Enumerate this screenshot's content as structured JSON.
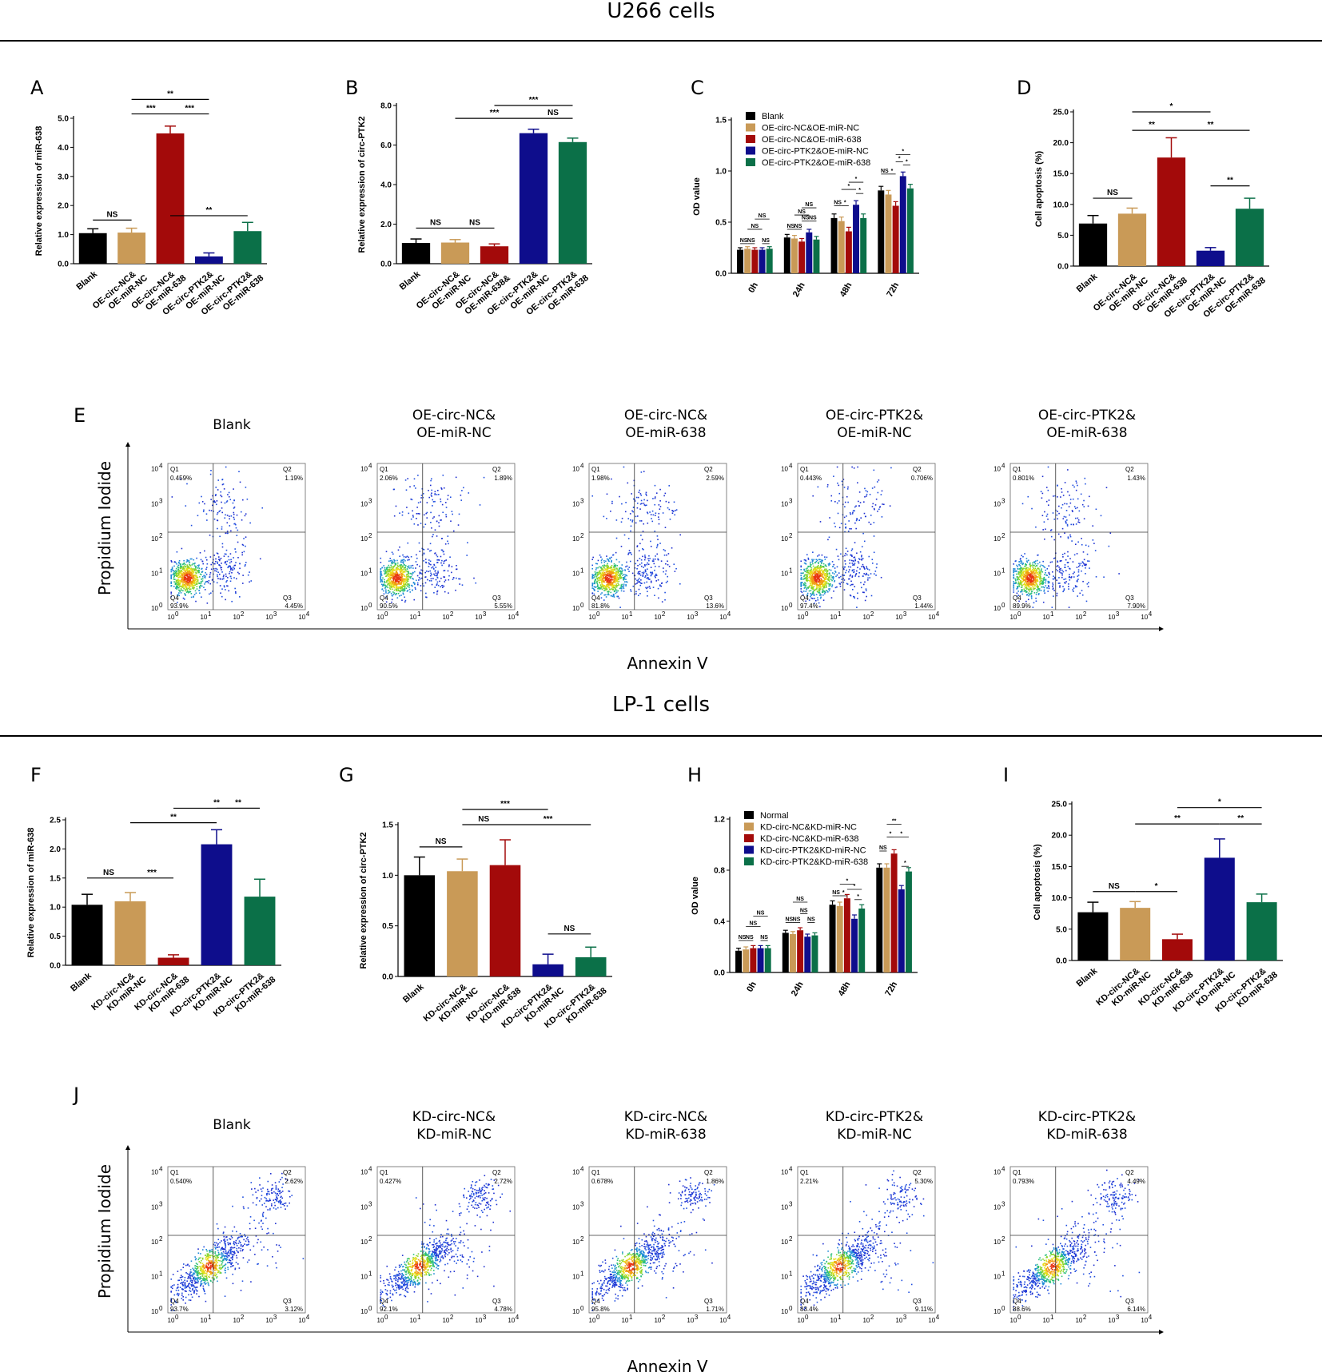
{
  "sections": [
    {
      "title": "U266 cells"
    },
    {
      "title": "LP-1 cells"
    }
  ],
  "colors": {
    "black": "#000000",
    "tan": "#C99A57",
    "red": "#A30A0A",
    "blue": "#0E0D8C",
    "green": "#0B7048"
  },
  "chart_data": [
    {
      "id": "A",
      "type": "bar",
      "letter": "A",
      "ylabel": "Relative expression of miR-638",
      "ylim": [
        0,
        5
      ],
      "yticks": [
        "0.0",
        "1.0",
        "2.0",
        "3.0",
        "4.0",
        "5.0"
      ],
      "ytick_values": [
        0,
        1,
        2,
        3,
        4,
        5
      ],
      "categories": [
        "Blank",
        "OE-circ-NC&\nOE-miR-NC",
        "OE-circ-NC&\nOE-miR-638",
        "OE-circ-PTK2&\nOE-miR-NC",
        "OE-circ-PTK2&\nOE-miR-638"
      ],
      "values": [
        1.05,
        1.07,
        4.48,
        0.25,
        1.12
      ],
      "errors": [
        0.15,
        0.15,
        0.25,
        0.12,
        0.3
      ],
      "significance": [
        {
          "from": 0,
          "to": 1,
          "label": "NS",
          "level": 1.5
        },
        {
          "from": 2,
          "to": 4,
          "label": "**",
          "level": 1.65
        },
        {
          "from": 1,
          "to": 2,
          "label": "***",
          "level": 5.15
        },
        {
          "from": 2,
          "to": 3,
          "label": "***",
          "level": 5.15
        },
        {
          "from": 1,
          "to": 3,
          "label": "**",
          "level": 5.65
        }
      ]
    },
    {
      "id": "B",
      "type": "bar",
      "letter": "B",
      "ylabel": "Relative expression of circ-PTK2",
      "ylim": [
        0,
        8
      ],
      "yticks": [
        "0.0",
        "2.0",
        "4.0",
        "6.0",
        "8.0"
      ],
      "ytick_values": [
        0,
        2,
        4,
        6,
        8
      ],
      "categories": [
        "Blank",
        "OE-circ-NC&\nOE-miR-NC",
        "OE-circ-NC&\nOE-miR-638&",
        "OE-circ-PTK2&\nOE-miR-NC",
        "OE-circ-PTK2&\nOE-miR-638"
      ],
      "values": [
        1.05,
        1.07,
        0.88,
        6.6,
        6.15
      ],
      "errors": [
        0.2,
        0.15,
        0.12,
        0.2,
        0.2
      ],
      "significance": [
        {
          "from": 0,
          "to": 1,
          "label": "NS",
          "level": 1.8
        },
        {
          "from": 1,
          "to": 2,
          "label": "NS",
          "level": 1.8
        },
        {
          "from": 1,
          "to": 3,
          "label": "***",
          "level": 7.35
        },
        {
          "from": 3,
          "to": 4,
          "label": "NS",
          "level": 7.35
        },
        {
          "from": 2,
          "to": 4,
          "label": "***",
          "level": 8.0
        }
      ]
    },
    {
      "id": "C",
      "type": "grouped-bar",
      "letter": "C",
      "ylabel": "OD value",
      "ylim": [
        0,
        1.5
      ],
      "yticks": [
        "0.0",
        "0.5",
        "1.0",
        "1.5"
      ],
      "ytick_values": [
        0,
        0.5,
        1,
        1.5
      ],
      "categories": [
        "0h",
        "24h",
        "48h",
        "72h"
      ],
      "series": [
        {
          "name": "Blank",
          "values": [
            0.23,
            0.35,
            0.54,
            0.81
          ]
        },
        {
          "name": "OE-circ-NC&OE-miR-NC",
          "values": [
            0.24,
            0.34,
            0.51,
            0.77
          ]
        },
        {
          "name": "OE-circ-NC&OE-miR-638",
          "values": [
            0.23,
            0.31,
            0.41,
            0.66
          ]
        },
        {
          "name": "OE-circ-PTK2&OE-miR-NC",
          "values": [
            0.23,
            0.4,
            0.67,
            0.95
          ]
        },
        {
          "name": "OE-circ-PTK2&OE-miR-638",
          "values": [
            0.24,
            0.33,
            0.54,
            0.83
          ]
        }
      ],
      "errors": [
        0.02,
        0.03,
        0.04,
        0.04
      ],
      "significance": [
        {
          "group": 0,
          "from": 0,
          "to": 1,
          "label": "NS",
          "level": 0.29
        },
        {
          "group": 0,
          "from": 1,
          "to": 2,
          "label": "NS",
          "level": 0.29
        },
        {
          "group": 0,
          "from": 3,
          "to": 4,
          "label": "NS",
          "level": 0.29
        },
        {
          "group": 0,
          "from": 1,
          "to": 3,
          "label": "NS",
          "level": 0.43
        },
        {
          "group": 0,
          "from": 2,
          "to": 4,
          "label": "NS",
          "level": 0.53
        },
        {
          "group": 1,
          "from": 0,
          "to": 1,
          "label": "NS",
          "level": 0.43
        },
        {
          "group": 1,
          "from": 1,
          "to": 2,
          "label": "NS",
          "level": 0.43
        },
        {
          "group": 1,
          "from": 2,
          "to": 3,
          "label": "NS",
          "level": 0.51
        },
        {
          "group": 1,
          "from": 3,
          "to": 4,
          "label": "NS",
          "level": 0.51
        },
        {
          "group": 1,
          "from": 1,
          "to": 3,
          "label": "NS",
          "level": 0.57
        },
        {
          "group": 1,
          "from": 2,
          "to": 4,
          "label": "NS",
          "level": 0.64
        },
        {
          "group": 2,
          "from": 0,
          "to": 1,
          "label": "NS",
          "level": 0.66
        },
        {
          "group": 2,
          "from": 1,
          "to": 2,
          "label": "*",
          "level": 0.66
        },
        {
          "group": 2,
          "from": 3,
          "to": 4,
          "label": "*",
          "level": 0.78
        },
        {
          "group": 2,
          "from": 1,
          "to": 3,
          "label": "*",
          "level": 0.82
        },
        {
          "group": 2,
          "from": 2,
          "to": 4,
          "label": "*",
          "level": 0.89
        },
        {
          "group": 3,
          "from": 0,
          "to": 1,
          "label": "NS",
          "level": 0.97
        },
        {
          "group": 3,
          "from": 1,
          "to": 2,
          "label": "*",
          "level": 0.97
        },
        {
          "group": 3,
          "from": 3,
          "to": 4,
          "label": "*",
          "level": 1.06
        },
        {
          "group": 3,
          "from": 2,
          "to": 3,
          "label": "*",
          "level": 1.09
        },
        {
          "group": 3,
          "from": 2,
          "to": 4,
          "label": "*",
          "level": 1.16
        }
      ]
    },
    {
      "id": "D",
      "type": "bar",
      "letter": "D",
      "ylabel": "Cell apoptosis (%)",
      "ylim": [
        0,
        25
      ],
      "yticks": [
        "0.0",
        "5.0",
        "10.0",
        "15.0",
        "20.0",
        "25.0"
      ],
      "ytick_values": [
        0,
        5,
        10,
        15,
        20,
        25
      ],
      "categories": [
        "Blank",
        "OE-circ-NC&\nOE-miR-NC",
        "OE-circ-NC&\nOE-miR-638",
        "OE-circ-PTK2&\nOE-miR-NC",
        "OE-circ-PTK2&\nOE-miR-638"
      ],
      "values": [
        6.9,
        8.5,
        17.6,
        2.5,
        9.3
      ],
      "errors": [
        1.3,
        0.9,
        3.2,
        0.5,
        1.7
      ],
      "significance": [
        {
          "from": 0,
          "to": 1,
          "label": "NS",
          "level": 11.0
        },
        {
          "from": 3,
          "to": 4,
          "label": "**",
          "level": 13.0
        },
        {
          "from": 1,
          "to": 2,
          "label": "**",
          "level": 22.0
        },
        {
          "from": 2,
          "to": 4,
          "label": "**",
          "level": 22.0
        },
        {
          "from": 1,
          "to": 3,
          "label": "*",
          "level": 25.0
        }
      ]
    },
    {
      "id": "F",
      "type": "bar",
      "letter": "F",
      "ylabel": "Relative expression of miR-638",
      "ylim": [
        0,
        2.5
      ],
      "yticks": [
        "0.0",
        "0.5",
        "1.0",
        "1.5",
        "2.0",
        "2.5"
      ],
      "ytick_values": [
        0,
        0.5,
        1,
        1.5,
        2,
        2.5
      ],
      "categories": [
        "Blank",
        "KD-circ-NC&\nKD-miR-NC",
        "KD-circ-NC&\nKD-miR-638",
        "KD-circ-PTK2&\nKD-miR-NC",
        "KD-circ-PTK2&\nKD-miR-638"
      ],
      "values": [
        1.04,
        1.1,
        0.13,
        2.08,
        1.18
      ],
      "errors": [
        0.18,
        0.15,
        0.05,
        0.25,
        0.3
      ],
      "significance": [
        {
          "from": 0,
          "to": 1,
          "label": "NS",
          "level": 1.5
        },
        {
          "from": 1,
          "to": 2,
          "label": "***",
          "level": 1.5
        },
        {
          "from": 1,
          "to": 3,
          "label": "**",
          "level": 2.45
        },
        {
          "from": 3,
          "to": 4,
          "label": "**",
          "level": 2.7
        },
        {
          "from": 2,
          "to": 4,
          "label": "**",
          "level": 2.7
        }
      ]
    },
    {
      "id": "G",
      "type": "bar",
      "letter": "G",
      "ylabel": "Relative expression of circ-PTK2",
      "ylim": [
        0,
        1.5
      ],
      "yticks": [
        "0.0",
        "0.5",
        "1.0",
        "1.5"
      ],
      "ytick_values": [
        0,
        0.5,
        1,
        1.5
      ],
      "categories": [
        "Blank",
        "KD-circ-NC&\nKD-miR-NC",
        "KD-circ-NC&\nKD-miR-638",
        "KD-circ-PTK2&\nKD-miR-NC",
        "KD-circ-PTK2&\nKD-miR-638"
      ],
      "values": [
        1.0,
        1.04,
        1.1,
        0.12,
        0.19
      ],
      "errors": [
        0.18,
        0.12,
        0.25,
        0.1,
        0.1
      ],
      "significance": [
        {
          "from": 0,
          "to": 1,
          "label": "NS",
          "level": 1.28
        },
        {
          "from": 3,
          "to": 4,
          "label": "NS",
          "level": 0.42
        },
        {
          "from": 1,
          "to": 2,
          "label": "NS",
          "level": 1.5
        },
        {
          "from": 2,
          "to": 4,
          "label": "***",
          "level": 1.5
        },
        {
          "from": 1,
          "to": 3,
          "label": "***",
          "level": 1.65
        }
      ]
    },
    {
      "id": "H",
      "type": "grouped-bar",
      "letter": "H",
      "ylabel": "OD value",
      "ylim": [
        0,
        1.2
      ],
      "yticks": [
        "0.0",
        "0.4",
        "0.8",
        "1.2"
      ],
      "ytick_values": [
        0,
        0.4,
        0.8,
        1.2
      ],
      "categories": [
        "0h",
        "24h",
        "48h",
        "72h"
      ],
      "series": [
        {
          "name": "Normal",
          "values": [
            0.17,
            0.31,
            0.53,
            0.82
          ]
        },
        {
          "name": "KD-circ-NC&KD-miR-NC",
          "values": [
            0.18,
            0.3,
            0.52,
            0.82
          ]
        },
        {
          "name": "KD-circ-NC&KD-miR-638",
          "values": [
            0.19,
            0.33,
            0.58,
            0.93
          ]
        },
        {
          "name": "KD-circ-PTK2&KD-miR-NC",
          "values": [
            0.19,
            0.28,
            0.42,
            0.65
          ]
        },
        {
          "name": "KD-circ-PTK2&KD-miR-638",
          "values": [
            0.19,
            0.29,
            0.5,
            0.79
          ]
        }
      ],
      "errors": [
        0.02,
        0.02,
        0.03,
        0.03
      ],
      "significance": [
        {
          "group": 0,
          "from": 0,
          "to": 1,
          "label": "NS",
          "level": 0.25
        },
        {
          "group": 0,
          "from": 1,
          "to": 2,
          "label": "NS",
          "level": 0.25
        },
        {
          "group": 0,
          "from": 3,
          "to": 4,
          "label": "NS",
          "level": 0.25
        },
        {
          "group": 0,
          "from": 1,
          "to": 3,
          "label": "NS",
          "level": 0.36
        },
        {
          "group": 0,
          "from": 2,
          "to": 4,
          "label": "NS",
          "level": 0.44
        },
        {
          "group": 1,
          "from": 0,
          "to": 1,
          "label": "NS",
          "level": 0.39
        },
        {
          "group": 1,
          "from": 1,
          "to": 2,
          "label": "NS",
          "level": 0.39
        },
        {
          "group": 1,
          "from": 3,
          "to": 4,
          "label": "NS",
          "level": 0.39
        },
        {
          "group": 1,
          "from": 2,
          "to": 3,
          "label": "NS",
          "level": 0.46
        },
        {
          "group": 1,
          "from": 1,
          "to": 3,
          "label": "NS",
          "level": 0.55
        },
        {
          "group": 2,
          "from": 0,
          "to": 1,
          "label": "NS",
          "level": 0.6
        },
        {
          "group": 2,
          "from": 1,
          "to": 2,
          "label": "*",
          "level": 0.6
        },
        {
          "group": 2,
          "from": 3,
          "to": 4,
          "label": "*",
          "level": 0.57
        },
        {
          "group": 2,
          "from": 2,
          "to": 4,
          "label": "*",
          "level": 0.65
        },
        {
          "group": 2,
          "from": 1,
          "to": 3,
          "label": "*",
          "level": 0.69
        },
        {
          "group": 3,
          "from": 0,
          "to": 1,
          "label": "NS",
          "level": 0.95
        },
        {
          "group": 3,
          "from": 3,
          "to": 4,
          "label": "*",
          "level": 0.83
        },
        {
          "group": 3,
          "from": 1,
          "to": 2,
          "label": "*",
          "level": 1.06
        },
        {
          "group": 3,
          "from": 2,
          "to": 4,
          "label": "*",
          "level": 1.06
        },
        {
          "group": 3,
          "from": 1,
          "to": 3,
          "label": "**",
          "level": 1.16
        }
      ]
    },
    {
      "id": "I",
      "type": "bar",
      "letter": "I",
      "ylabel": "Cell apoptosis (%)",
      "ylim": [
        0,
        25
      ],
      "yticks": [
        "0.0",
        "5.0",
        "10.0",
        "15.0",
        "20.0",
        "25.0"
      ],
      "ytick_values": [
        0,
        5,
        10,
        15,
        20,
        25
      ],
      "categories": [
        "Blank",
        "KD-circ-NC&\nKD-miR-NC",
        "KD-circ-NC&\nKD-miR-638",
        "KD-circ-PTK2&\nKD-miR-NC",
        "KD-circ-PTK2&\nKD-miR-638"
      ],
      "values": [
        7.7,
        8.4,
        3.4,
        16.4,
        9.3
      ],
      "errors": [
        1.6,
        1.0,
        0.8,
        3.0,
        1.3
      ],
      "significance": [
        {
          "from": 0,
          "to": 1,
          "label": "NS",
          "level": 11.0
        },
        {
          "from": 1,
          "to": 2,
          "label": "*",
          "level": 11.0
        },
        {
          "from": 1,
          "to": 3,
          "label": "**",
          "level": 21.8
        },
        {
          "from": 3,
          "to": 4,
          "label": "**",
          "level": 21.8
        },
        {
          "from": 2,
          "to": 4,
          "label": "*",
          "level": 24.4
        }
      ]
    }
  ],
  "flow": [
    {
      "letter": "E",
      "xlabel": "Annexin V",
      "ylabel": "Propidium Iodide",
      "pattern": "tight",
      "plots": [
        {
          "title": "Blank",
          "q1": "0.459%",
          "q2": "1.19%",
          "q3": "4.45%",
          "q4": "93.9%"
        },
        {
          "title": "OE-circ-NC&\nOE-miR-NC",
          "q1": "2.06%",
          "q2": "1.89%",
          "q3": "5.55%",
          "q4": "90.5%"
        },
        {
          "title": "OE-circ-NC&\nOE-miR-638",
          "q1": "1.98%",
          "q2": "2.59%",
          "q3": "13.6%",
          "q4": "81.8%"
        },
        {
          "title": "OE-circ-PTK2&\nOE-miR-NC",
          "q1": "0.443%",
          "q2": "0.706%",
          "q3": "1.44%",
          "q4": "97.4%"
        },
        {
          "title": "OE-circ-PTK2&\nOE-miR-638",
          "q1": "0.801%",
          "q2": "1.43%",
          "q3": "7.90%",
          "q4": "89.9%"
        }
      ]
    },
    {
      "letter": "J",
      "xlabel": "Annexin V",
      "ylabel": "Propidium Iodide",
      "pattern": "diagonal",
      "plots": [
        {
          "title": "Blank",
          "q1": "0.540%",
          "q2": "2.62%",
          "q3": "3.12%",
          "q4": "93.7%"
        },
        {
          "title": "KD-circ-NC&\nKD-miR-NC",
          "q1": "0.427%",
          "q2": "2.72%",
          "q3": "4.78%",
          "q4": "92.1%"
        },
        {
          "title": "KD-circ-NC&\nKD-miR-638",
          "q1": "0.678%",
          "q2": "1.86%",
          "q3": "1.71%",
          "q4": "95.8%"
        },
        {
          "title": "KD-circ-PTK2&\nKD-miR-NC",
          "q1": "2.21%",
          "q2": "5.30%",
          "q3": "9.11%",
          "q4": "83.4%"
        },
        {
          "title": "KD-circ-PTK2&\nKD-miR-638",
          "q1": "0.793%",
          "q2": "4.49%",
          "q3": "6.14%",
          "q4": "88.6%"
        }
      ]
    }
  ],
  "flow_ticks": [
    "10",
    "0",
    "1",
    "2",
    "3",
    "4"
  ]
}
